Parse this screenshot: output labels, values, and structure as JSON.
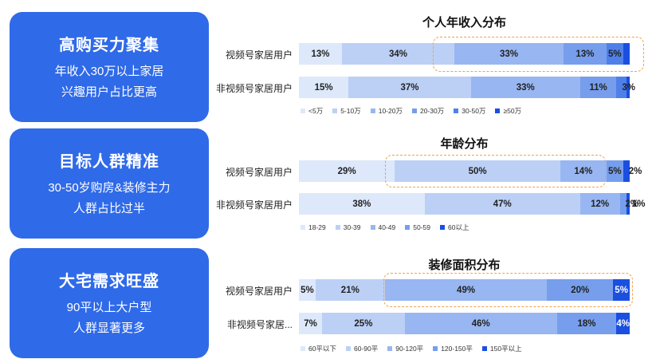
{
  "cards": [
    {
      "title": "高购买力聚集",
      "lines": [
        "年收入30万以上家居",
        "兴趣用户占比更高"
      ]
    },
    {
      "title": "目标人群精准",
      "lines": [
        "30-50岁购房&装修主力",
        "人群占比过半"
      ]
    },
    {
      "title": "大宅需求旺盛",
      "lines": [
        "90平以上大户型",
        "人群显著更多"
      ]
    }
  ],
  "colors": {
    "card": "#2f6ae8",
    "seg": [
      "#dde8fb",
      "#bcd0f6",
      "#98b6f1",
      "#769eec",
      "#4f80ea",
      "#1a4fe0"
    ],
    "highlight": "#f0a24a"
  },
  "chart_data": [
    {
      "type": "bar",
      "orientation": "horizontal",
      "stacked": true,
      "title": "个人年收入分布",
      "categories": [
        "视频号家居用户",
        "非视频号家居用户"
      ],
      "legend_position": "bottom",
      "series": [
        {
          "name": "<5万",
          "values": [
            13,
            15
          ],
          "labels": [
            "13%",
            "15%"
          ]
        },
        {
          "name": "5-10万",
          "values": [
            34,
            37
          ],
          "labels": [
            "34%",
            "37%"
          ]
        },
        {
          "name": "10-20万",
          "values": [
            33,
            33
          ],
          "labels": [
            "33%",
            "33%"
          ]
        },
        {
          "name": "20-30万",
          "values": [
            13,
            11
          ],
          "labels": [
            "13%",
            "11%"
          ]
        },
        {
          "name": "30-50万",
          "values": [
            5,
            3
          ],
          "labels": [
            "5%",
            "3%"
          ]
        },
        {
          "name": "≥50万",
          "values": [
            2,
            1
          ],
          "labels": [
            "",
            ""
          ]
        }
      ]
    },
    {
      "type": "bar",
      "orientation": "horizontal",
      "stacked": true,
      "title": "年龄分布",
      "categories": [
        "视频号家居用户",
        "非视频号家居用户"
      ],
      "legend_position": "bottom",
      "series": [
        {
          "name": "18-29",
          "values": [
            29,
            38
          ],
          "labels": [
            "29%",
            "38%"
          ]
        },
        {
          "name": "30-39",
          "values": [
            50,
            47
          ],
          "labels": [
            "50%",
            "47%"
          ]
        },
        {
          "name": "40-49",
          "values": [
            14,
            12
          ],
          "labels": [
            "14%",
            "12%"
          ]
        },
        {
          "name": "50-59",
          "values": [
            5,
            2
          ],
          "labels": [
            "5%",
            "2%"
          ]
        },
        {
          "name": "60以上",
          "values": [
            2,
            1
          ],
          "labels": [
            "2%",
            "1%"
          ]
        }
      ]
    },
    {
      "type": "bar",
      "orientation": "horizontal",
      "stacked": true,
      "title": "装修面积分布",
      "categories": [
        "视频号家居用户",
        "非视频号家居..."
      ],
      "legend_position": "bottom",
      "series": [
        {
          "name": "60平以下",
          "values": [
            5,
            7
          ],
          "labels": [
            "5%",
            "7%"
          ]
        },
        {
          "name": "60-90平",
          "values": [
            21,
            25
          ],
          "labels": [
            "21%",
            "25%"
          ]
        },
        {
          "name": "90-120平",
          "values": [
            49,
            46
          ],
          "labels": [
            "49%",
            "46%"
          ]
        },
        {
          "name": "120-150平",
          "values": [
            20,
            18
          ],
          "labels": [
            "20%",
            "18%"
          ]
        },
        {
          "name": "150平以上",
          "values": [
            5,
            4
          ],
          "labels": [
            "5%",
            "4%"
          ]
        }
      ]
    }
  ]
}
